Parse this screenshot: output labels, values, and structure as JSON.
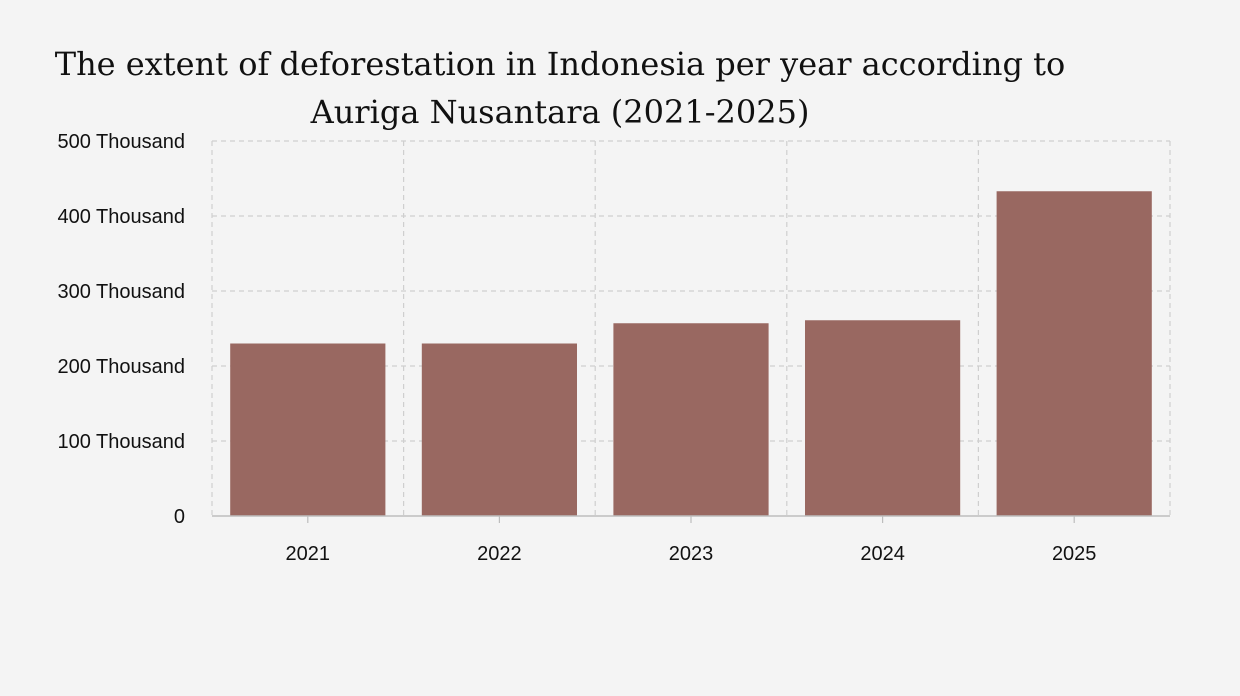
{
  "chart_data": {
    "type": "bar",
    "title": "The extent of deforestation in Indonesia per year according to Auriga Nusantara (2021-2025)",
    "xlabel": "",
    "ylabel": "",
    "categories": [
      "2021",
      "2022",
      "2023",
      "2024",
      "2025"
    ],
    "values": [
      230000,
      230000,
      257000,
      261000,
      433000
    ],
    "ylim": [
      0,
      500000
    ],
    "y_ticks": [
      0,
      100000,
      200000,
      300000,
      400000,
      500000
    ],
    "y_tick_labels": [
      "0",
      "100 Thousand",
      "200 Thousand",
      "300 Thousand",
      "400 Thousand",
      "500 Thousand"
    ],
    "grid": true,
    "bar_color": "#996861",
    "grid_color": "#cfcfcf",
    "background_color": "#f4f4f4"
  }
}
